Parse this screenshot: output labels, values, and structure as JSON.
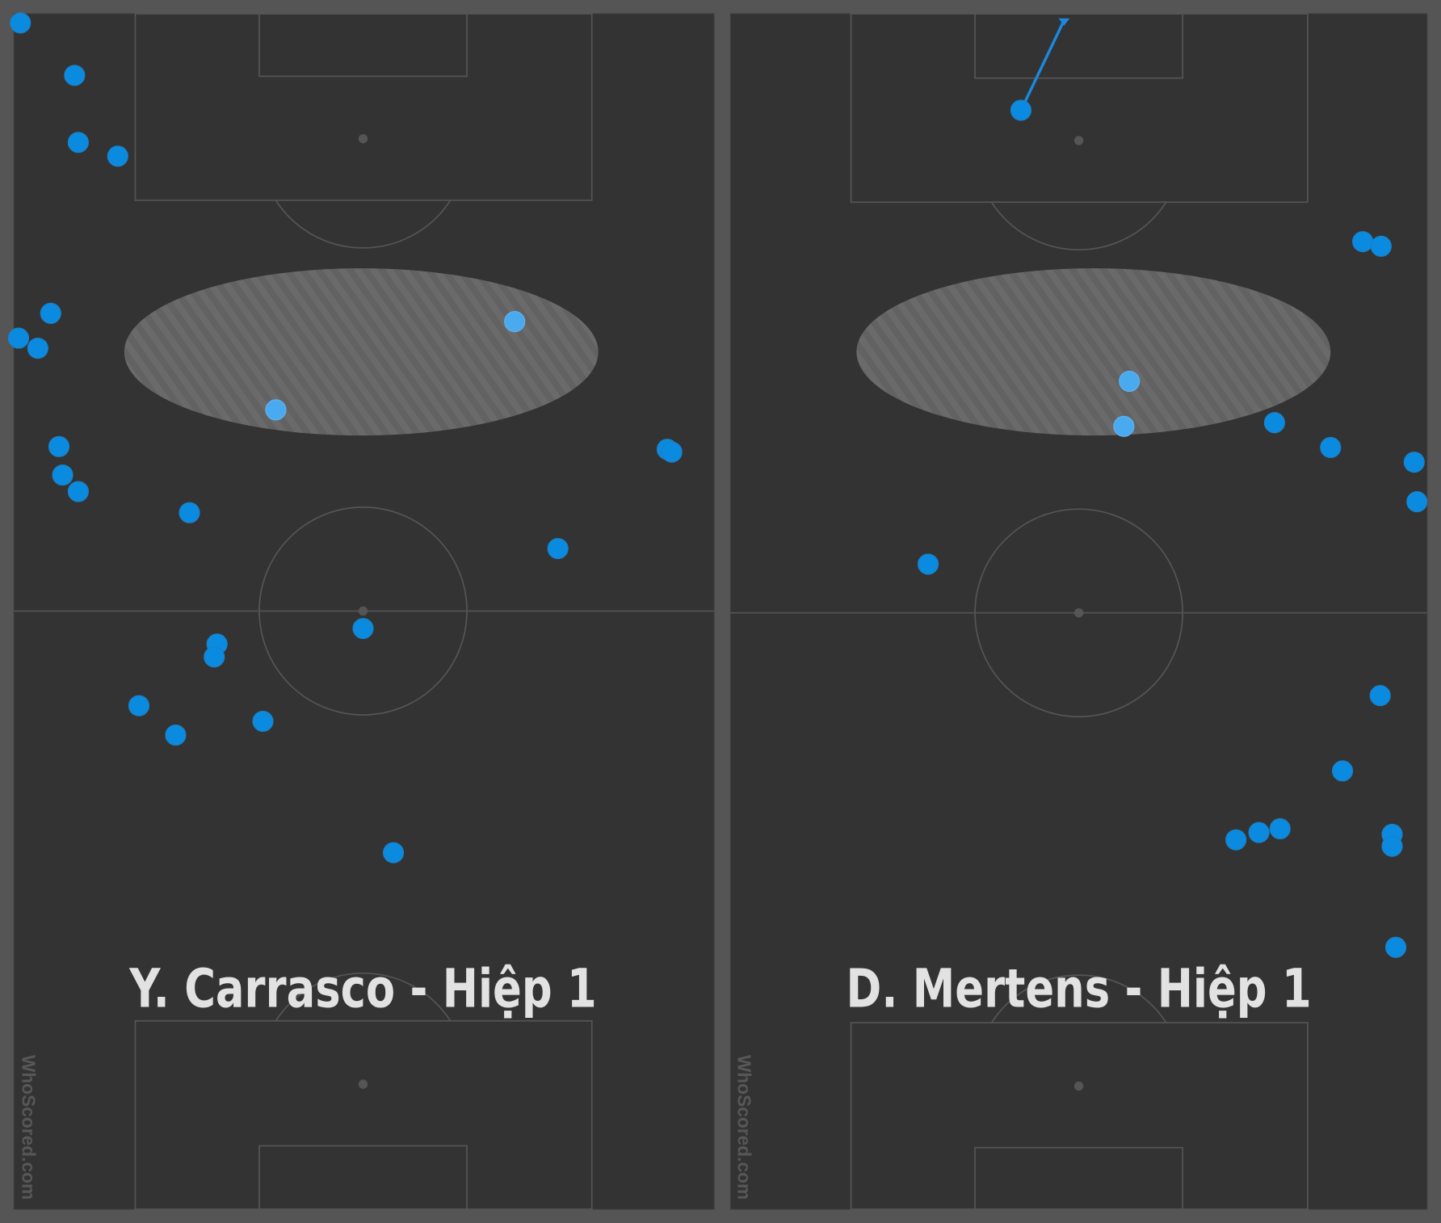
{
  "panels": [
    {
      "title": "Y. Carrasco - Hiệp 1",
      "watermark": "WhoScored.com"
    },
    {
      "title": "D. Mertens - Hiệp 1",
      "watermark": "WhoScored.com"
    }
  ]
}
